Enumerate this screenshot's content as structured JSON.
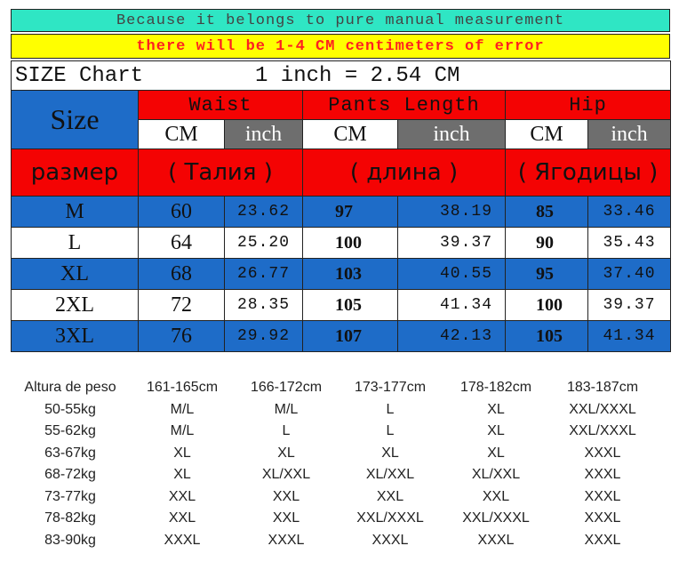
{
  "banner_top": "Because it belongs to pure manual measurement",
  "banner_warning": "there will be 1-4 CM centimeters of error",
  "chart_title": "SIZE Chart",
  "conversion": "1 inch = 2.54 CM",
  "header": {
    "size": "Size",
    "waist": "Waist",
    "pants_length": "Pants Length",
    "hip": "Hip",
    "cm": "CM",
    "inch": "inch",
    "ru_size": "размер",
    "ru_waist": "( Талия )",
    "ru_length": "( длина )",
    "ru_hip": "( Ягодицы )"
  },
  "rows": [
    {
      "size": "M",
      "waist_cm": "60",
      "waist_in": "23.62",
      "len_cm": "97",
      "len_in": "38.19",
      "hip_cm": "85",
      "hip_in": "33.46"
    },
    {
      "size": "L",
      "waist_cm": "64",
      "waist_in": "25.20",
      "len_cm": "100",
      "len_in": "39.37",
      "hip_cm": "90",
      "hip_in": "35.43"
    },
    {
      "size": "XL",
      "waist_cm": "68",
      "waist_in": "26.77",
      "len_cm": "103",
      "len_in": "40.55",
      "hip_cm": "95",
      "hip_in": "37.40"
    },
    {
      "size": "2XL",
      "waist_cm": "72",
      "waist_in": "28.35",
      "len_cm": "105",
      "len_in": "41.34",
      "hip_cm": "100",
      "hip_in": "39.37"
    },
    {
      "size": "3XL",
      "waist_cm": "76",
      "waist_in": "29.92",
      "len_cm": "107",
      "len_in": "42.13",
      "hip_cm": "105",
      "hip_in": "41.34"
    }
  ],
  "recommend": {
    "corner": "Altura de peso",
    "heights": [
      "161-165cm",
      "166-172cm",
      "173-177cm",
      "178-182cm",
      "183-187cm"
    ],
    "rows": [
      {
        "weight": "50-55kg",
        "sizes": [
          "M/L",
          "M/L",
          "L",
          "XL",
          "XXL/XXXL"
        ]
      },
      {
        "weight": "55-62kg",
        "sizes": [
          "M/L",
          "L",
          "L",
          "XL",
          "XXL/XXXL"
        ]
      },
      {
        "weight": "63-67kg",
        "sizes": [
          "XL",
          "XL",
          "XL",
          "XL",
          "XXXL"
        ]
      },
      {
        "weight": "68-72kg",
        "sizes": [
          "XL",
          "XL/XXL",
          "XL/XXL",
          "XL/XXL",
          "XXXL"
        ]
      },
      {
        "weight": "73-77kg",
        "sizes": [
          "XXL",
          "XXL",
          "XXL",
          "XXL",
          "XXXL"
        ]
      },
      {
        "weight": "78-82kg",
        "sizes": [
          "XXL",
          "XXL",
          "XXL/XXXL",
          "XXL/XXXL",
          "XXXL"
        ]
      },
      {
        "weight": "83-90kg",
        "sizes": [
          "XXXL",
          "XXXL",
          "XXXL",
          "XXXL",
          "XXXL"
        ]
      }
    ]
  },
  "colors": {
    "teal": "#2fe6c4",
    "yellow": "#ffff00",
    "red": "#f40303",
    "blue": "#1e6cc8",
    "gray": "#6e6e6e"
  }
}
